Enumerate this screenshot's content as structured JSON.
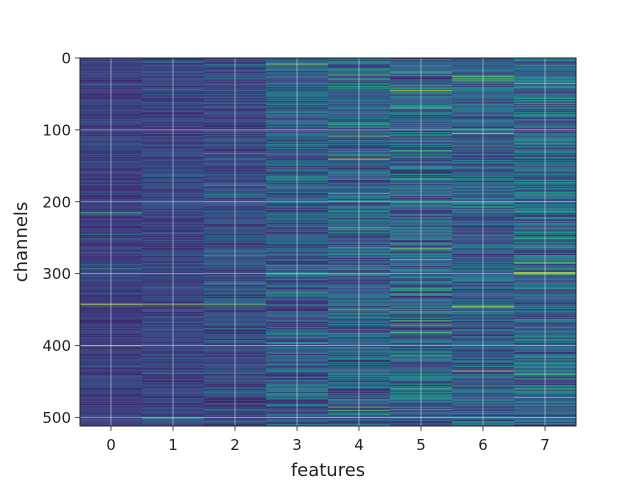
{
  "chart_data": {
    "type": "heatmap",
    "xlabel": "features",
    "ylabel": "channels",
    "x_categories": [
      "0",
      "1",
      "2",
      "3",
      "4",
      "5",
      "6",
      "7"
    ],
    "y_ticks": [
      0,
      100,
      200,
      300,
      400,
      500
    ],
    "ylim": [
      512,
      0
    ],
    "n_rows": 512,
    "grid": true,
    "colormap": "viridis",
    "color_range": [
      0,
      1
    ],
    "colormap_stops": [
      "#440154",
      "#3b528b",
      "#21918c",
      "#5ec962",
      "#fde725"
    ],
    "column_intensity": [
      0.2,
      0.25,
      0.3,
      0.45,
      0.5,
      0.55,
      0.5,
      0.55
    ],
    "highlight_rows": [
      {
        "row": 342,
        "feature": 0,
        "value": 0.95
      },
      {
        "row": 342,
        "feature": 1,
        "value": 0.85
      },
      {
        "row": 342,
        "feature": 2,
        "value": 0.8
      },
      {
        "row": 215,
        "feature": 0,
        "value": 0.7
      },
      {
        "row": 400,
        "feature": 0,
        "value": 0.75
      },
      {
        "row": 8,
        "feature": 3,
        "value": 0.8
      },
      {
        "row": 140,
        "feature": 4,
        "value": 0.9
      },
      {
        "row": 108,
        "feature": 4,
        "value": 0.85
      },
      {
        "row": 45,
        "feature": 5,
        "value": 0.95
      },
      {
        "row": 265,
        "feature": 5,
        "value": 0.85
      },
      {
        "row": 280,
        "feature": 5,
        "value": 0.8
      },
      {
        "row": 30,
        "feature": 6,
        "value": 0.85
      },
      {
        "row": 105,
        "feature": 6,
        "value": 0.9
      },
      {
        "row": 345,
        "feature": 6,
        "value": 0.85
      },
      {
        "row": 435,
        "feature": 6,
        "value": 0.9
      },
      {
        "row": 35,
        "feature": 7,
        "value": 0.85
      },
      {
        "row": 298,
        "feature": 7,
        "value": 0.95
      },
      {
        "row": 285,
        "feature": 7,
        "value": 0.8
      },
      {
        "row": 472,
        "feature": 7,
        "value": 0.8
      }
    ]
  }
}
